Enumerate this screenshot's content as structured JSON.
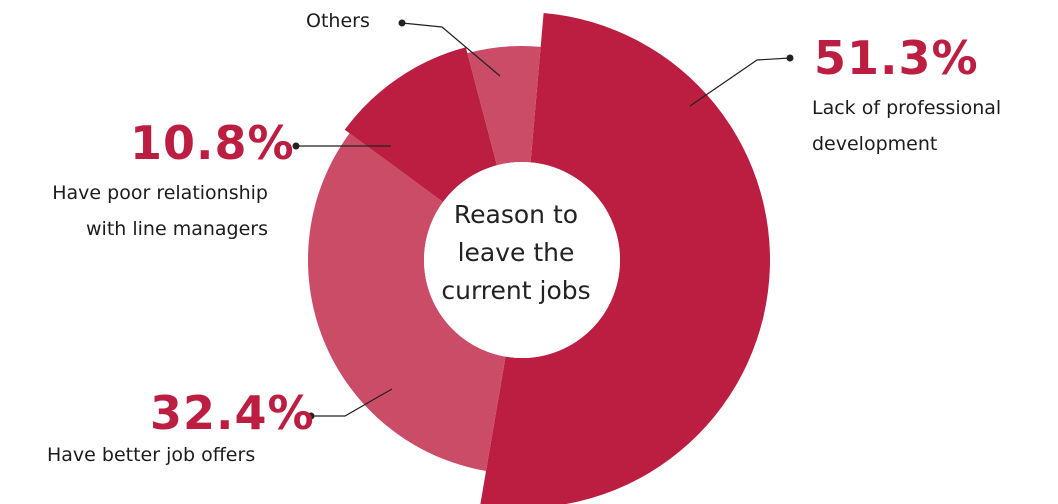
{
  "chart_data": {
    "type": "pie",
    "center_label": [
      "Reason to",
      "leave the",
      "current jobs"
    ],
    "slices": [
      {
        "label_lines": [
          "Lack of professional",
          "development"
        ],
        "value": 51.3,
        "value_label": "51.3%",
        "color": "#bc1e41"
      },
      {
        "label_lines": [
          "Have better job offers"
        ],
        "value": 32.4,
        "value_label": "32.4%",
        "color": "#cb4c67"
      },
      {
        "label_lines": [
          "Have poor relationship",
          "with line managers"
        ],
        "value": 10.8,
        "value_label": "10.8%",
        "color": "#bc1e41"
      },
      {
        "label_lines": [
          "Others"
        ],
        "value": 5.5,
        "value_label": "",
        "color": "#cb4c67"
      }
    ]
  }
}
